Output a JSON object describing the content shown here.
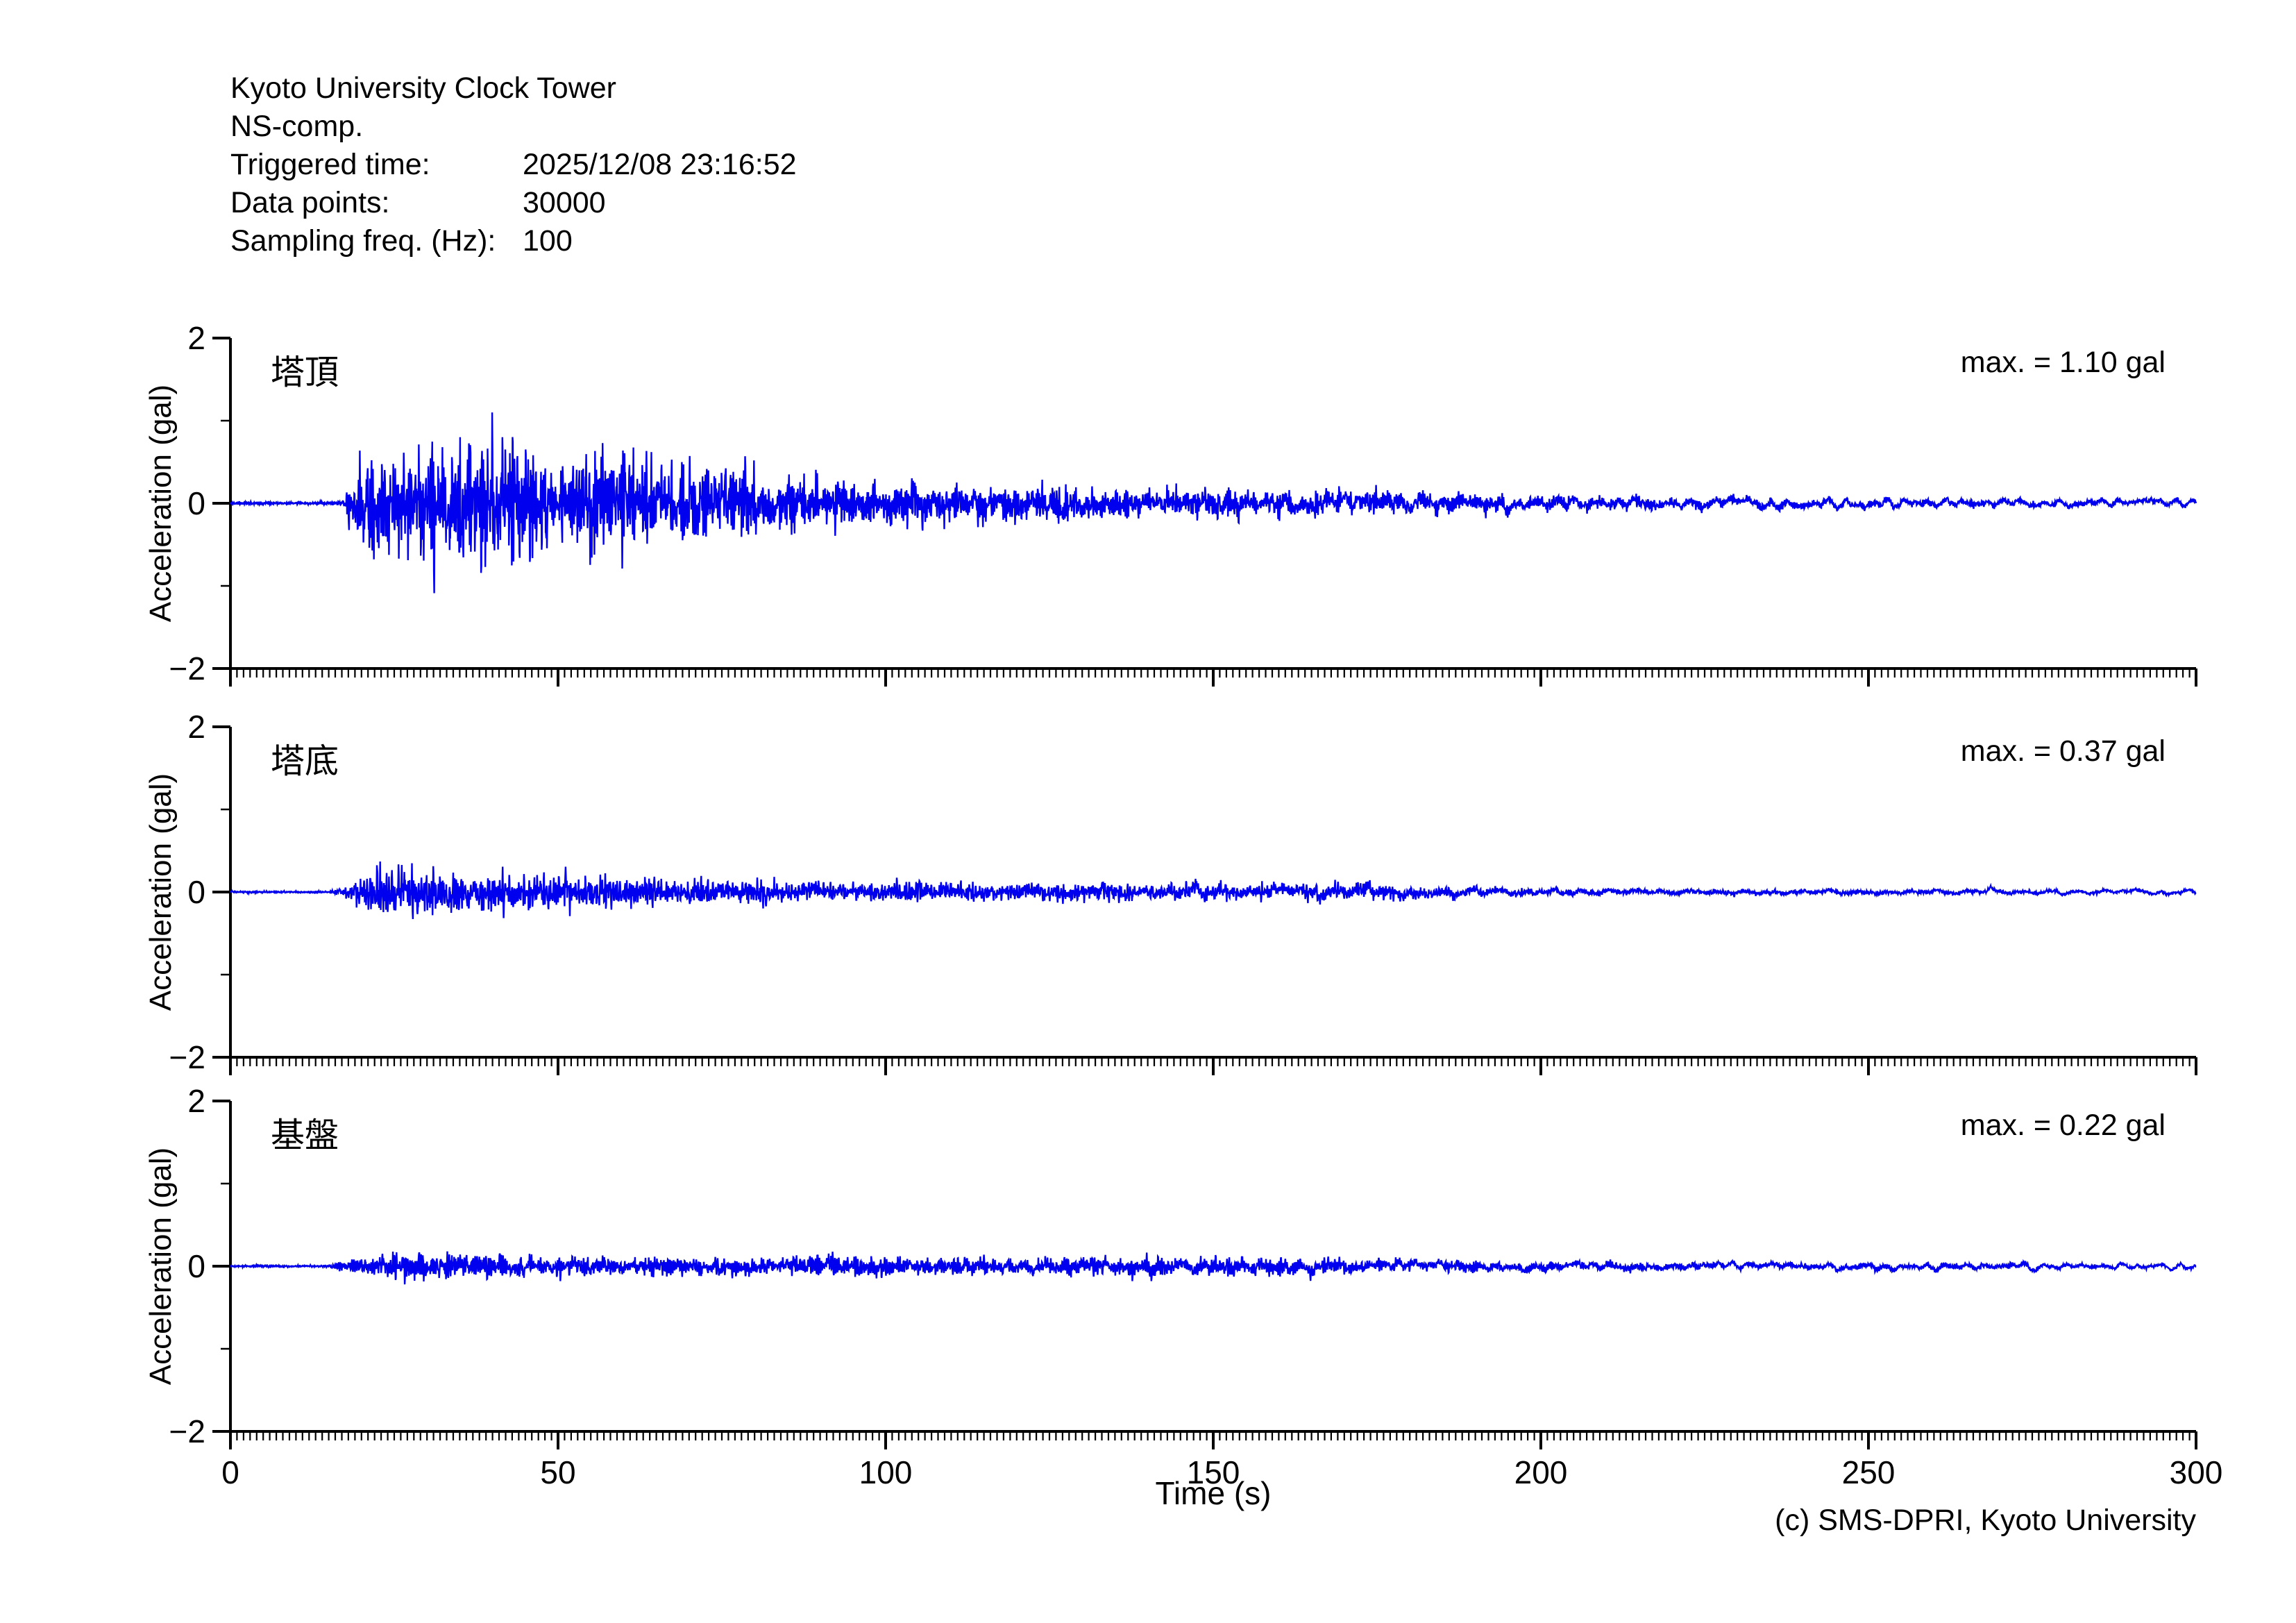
{
  "header": {
    "title": "Kyoto University Clock Tower",
    "component": "NS-comp.",
    "rows": [
      {
        "label": "Triggered time:",
        "value": "2025/12/08 23:16:52"
      },
      {
        "label": "Data points:",
        "value": "30000"
      },
      {
        "label": "Sampling freq. (Hz):",
        "value": "100"
      }
    ]
  },
  "footer": {
    "credit": "(c) SMS-DPRI, Kyoto University"
  },
  "chart_data": {
    "type": "line",
    "xlabel": "Time (s)",
    "ylabel": "Acceleration (gal)",
    "xlim": [
      0,
      300
    ],
    "ylim": [
      -2,
      2
    ],
    "x_major_ticks": [
      0,
      50,
      100,
      150,
      200,
      250,
      300
    ],
    "x_minor_tick_interval": 1,
    "y_major_ticks": [
      2,
      0,
      -2
    ],
    "y_minor_ticks": [
      1,
      -1
    ],
    "grid": false,
    "line_color": "#0000EE",
    "axis_color": "#000000",
    "sampling_freq_hz": 100,
    "n_points": 30000,
    "duration_s": 300,
    "series": [
      {
        "name": "塔頂",
        "max_gal": 1.1,
        "max_label": "max. = 1.10 gal",
        "seed": 20251208,
        "envelope": [
          [
            0,
            0.018
          ],
          [
            15,
            0.018
          ],
          [
            17,
            0.06
          ],
          [
            19,
            0.38
          ],
          [
            21,
            0.6
          ],
          [
            23,
            0.75
          ],
          [
            25,
            0.62
          ],
          [
            27,
            0.8
          ],
          [
            29,
            0.65
          ],
          [
            31,
            0.9
          ],
          [
            33,
            0.78
          ],
          [
            35,
            1.0
          ],
          [
            37,
            0.72
          ],
          [
            39,
            0.95
          ],
          [
            41,
            1.02
          ],
          [
            43,
            0.75
          ],
          [
            45,
            0.88
          ],
          [
            47,
            0.6
          ],
          [
            49,
            0.72
          ],
          [
            52,
            0.5
          ],
          [
            55,
            0.68
          ],
          [
            58,
            0.74
          ],
          [
            61,
            0.55
          ],
          [
            64,
            0.62
          ],
          [
            67,
            0.48
          ],
          [
            70,
            0.55
          ],
          [
            73,
            0.6
          ],
          [
            76,
            0.45
          ],
          [
            79,
            0.5
          ],
          [
            82,
            0.38
          ],
          [
            85,
            0.42
          ],
          [
            88,
            0.36
          ],
          [
            91,
            0.42
          ],
          [
            94,
            0.33
          ],
          [
            97,
            0.38
          ],
          [
            100,
            0.32
          ],
          [
            105,
            0.35
          ],
          [
            110,
            0.28
          ],
          [
            115,
            0.32
          ],
          [
            120,
            0.26
          ],
          [
            125,
            0.3
          ],
          [
            130,
            0.25
          ],
          [
            135,
            0.27
          ],
          [
            140,
            0.23
          ],
          [
            145,
            0.26
          ],
          [
            150,
            0.29
          ],
          [
            155,
            0.26
          ],
          [
            160,
            0.22
          ],
          [
            165,
            0.25
          ],
          [
            170,
            0.2
          ],
          [
            175,
            0.23
          ],
          [
            180,
            0.21
          ],
          [
            185,
            0.18
          ],
          [
            190,
            0.2
          ],
          [
            195,
            0.16
          ],
          [
            200,
            0.14
          ],
          [
            205,
            0.16
          ],
          [
            210,
            0.13
          ],
          [
            215,
            0.15
          ],
          [
            220,
            0.12
          ],
          [
            225,
            0.14
          ],
          [
            230,
            0.11
          ],
          [
            235,
            0.13
          ],
          [
            240,
            0.1
          ],
          [
            245,
            0.12
          ],
          [
            250,
            0.1
          ],
          [
            255,
            0.11
          ],
          [
            260,
            0.09
          ],
          [
            265,
            0.11
          ],
          [
            270,
            0.09
          ],
          [
            275,
            0.1
          ],
          [
            280,
            0.08
          ],
          [
            285,
            0.09
          ],
          [
            290,
            0.08
          ],
          [
            295,
            0.09
          ],
          [
            300,
            0.08
          ]
        ]
      },
      {
        "name": "塔底",
        "max_gal": 0.37,
        "max_label": "max. = 0.37 gal",
        "seed": 98211,
        "envelope": [
          [
            0,
            0.01
          ],
          [
            15,
            0.01
          ],
          [
            17,
            0.04
          ],
          [
            19,
            0.16
          ],
          [
            21,
            0.24
          ],
          [
            23,
            0.3
          ],
          [
            25,
            0.26
          ],
          [
            27,
            0.32
          ],
          [
            29,
            0.25
          ],
          [
            31,
            0.3
          ],
          [
            33,
            0.26
          ],
          [
            35,
            0.3
          ],
          [
            37,
            0.22
          ],
          [
            39,
            0.26
          ],
          [
            41,
            0.28
          ],
          [
            43,
            0.2
          ],
          [
            45,
            0.24
          ],
          [
            48,
            0.18
          ],
          [
            51,
            0.22
          ],
          [
            54,
            0.16
          ],
          [
            57,
            0.2
          ],
          [
            60,
            0.15
          ],
          [
            64,
            0.18
          ],
          [
            68,
            0.14
          ],
          [
            72,
            0.16
          ],
          [
            76,
            0.13
          ],
          [
            80,
            0.15
          ],
          [
            85,
            0.12
          ],
          [
            90,
            0.14
          ],
          [
            95,
            0.11
          ],
          [
            100,
            0.13
          ],
          [
            105,
            0.14
          ],
          [
            110,
            0.12
          ],
          [
            115,
            0.14
          ],
          [
            120,
            0.11
          ],
          [
            125,
            0.13
          ],
          [
            130,
            0.11
          ],
          [
            135,
            0.13
          ],
          [
            140,
            0.1
          ],
          [
            145,
            0.12
          ],
          [
            150,
            0.13
          ],
          [
            155,
            0.11
          ],
          [
            160,
            0.13
          ],
          [
            165,
            0.14
          ],
          [
            170,
            0.12
          ],
          [
            175,
            0.14
          ],
          [
            180,
            0.1
          ],
          [
            185,
            0.09
          ],
          [
            190,
            0.08
          ],
          [
            195,
            0.07
          ],
          [
            200,
            0.06
          ],
          [
            210,
            0.055
          ],
          [
            220,
            0.05
          ],
          [
            230,
            0.055
          ],
          [
            240,
            0.05
          ],
          [
            250,
            0.055
          ],
          [
            260,
            0.05
          ],
          [
            270,
            0.05
          ],
          [
            280,
            0.045
          ],
          [
            290,
            0.05
          ],
          [
            300,
            0.045
          ]
        ]
      },
      {
        "name": "基盤",
        "max_gal": 0.22,
        "max_label": "max. = 0.22 gal",
        "seed": 55107,
        "envelope": [
          [
            0,
            0.008
          ],
          [
            15,
            0.008
          ],
          [
            17,
            0.03
          ],
          [
            19,
            0.06
          ],
          [
            21,
            0.08
          ],
          [
            24,
            0.09
          ],
          [
            27,
            0.1
          ],
          [
            30,
            0.09
          ],
          [
            33,
            0.1
          ],
          [
            36,
            0.08
          ],
          [
            40,
            0.09
          ],
          [
            44,
            0.08
          ],
          [
            48,
            0.085
          ],
          [
            52,
            0.075
          ],
          [
            56,
            0.08
          ],
          [
            60,
            0.07
          ],
          [
            65,
            0.075
          ],
          [
            70,
            0.065
          ],
          [
            75,
            0.07
          ],
          [
            80,
            0.06
          ],
          [
            85,
            0.07
          ],
          [
            90,
            0.08
          ],
          [
            95,
            0.09
          ],
          [
            100,
            0.08
          ],
          [
            105,
            0.07
          ],
          [
            110,
            0.09
          ],
          [
            115,
            0.08
          ],
          [
            120,
            0.07
          ],
          [
            125,
            0.08
          ],
          [
            130,
            0.075
          ],
          [
            135,
            0.08
          ],
          [
            140,
            0.085
          ],
          [
            145,
            0.08
          ],
          [
            150,
            0.085
          ],
          [
            155,
            0.09
          ],
          [
            160,
            0.085
          ],
          [
            165,
            0.09
          ],
          [
            170,
            0.08
          ],
          [
            175,
            0.075
          ],
          [
            180,
            0.07
          ],
          [
            185,
            0.065
          ],
          [
            190,
            0.06
          ],
          [
            195,
            0.055
          ],
          [
            200,
            0.05
          ],
          [
            210,
            0.05
          ],
          [
            220,
            0.045
          ],
          [
            230,
            0.045
          ],
          [
            240,
            0.04
          ],
          [
            250,
            0.045
          ],
          [
            260,
            0.04
          ],
          [
            270,
            0.04
          ],
          [
            280,
            0.04
          ],
          [
            290,
            0.035
          ],
          [
            300,
            0.035
          ]
        ]
      }
    ]
  }
}
